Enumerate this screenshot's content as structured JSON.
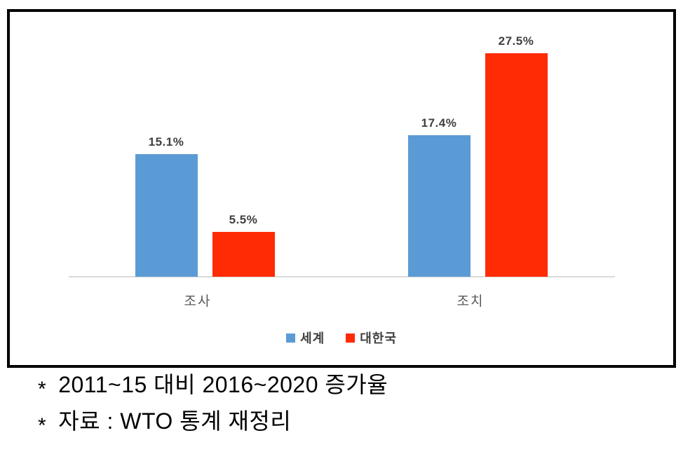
{
  "chart_data": {
    "type": "bar",
    "title": "",
    "xlabel": "",
    "ylabel": "",
    "categories": [
      "조사",
      "조치"
    ],
    "series": [
      {
        "name": "세계",
        "color": "#5b9bd5",
        "values": [
          15.1,
          17.4
        ],
        "labels": [
          "15.1%",
          "17.4%"
        ]
      },
      {
        "name": "대한국",
        "color": "#ff2b05",
        "values": [
          5.5,
          27.5
        ],
        "labels": [
          "5.5%",
          "27.5%"
        ]
      }
    ],
    "ylim": [
      0,
      30
    ],
    "grid": false,
    "legend_position": "bottom",
    "value_label_color": "#404040",
    "category_label_color": "#595959",
    "axis_line_color": "#d9d9d9"
  },
  "footnotes": {
    "bullet": "*",
    "lines": [
      "2011~15 대비 2016~2020 증가율",
      "자료 : WTO 통계 재정리"
    ]
  }
}
